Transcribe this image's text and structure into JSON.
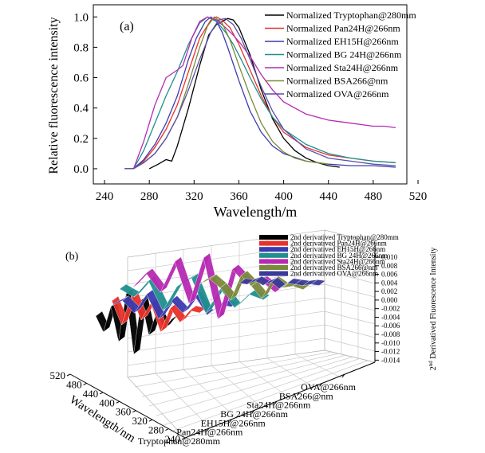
{
  "panel_a": {
    "label": "(a)",
    "chart_data": {
      "type": "line",
      "xlabel": "Wavelength/m",
      "ylabel": "Relative fluorescence intensity",
      "xlim": [
        230,
        510
      ],
      "ylim": [
        -0.1,
        1.08
      ],
      "xticks": [
        240,
        280,
        320,
        360,
        400,
        440,
        480,
        520
      ],
      "yticks": [
        0.0,
        0.2,
        0.4,
        0.6,
        0.8,
        1.0
      ],
      "ytick_labels": [
        "0.0",
        "0.2",
        "0.4",
        "0.6",
        "0.8",
        "1.0"
      ],
      "legend_position": "top-right",
      "series": [
        {
          "name": "Normalized Tryptophan@280mm",
          "color": "#000000",
          "x": [
            280,
            288,
            295,
            300,
            305,
            315,
            325,
            333,
            340,
            345,
            350,
            355,
            360,
            370,
            380,
            390,
            400,
            410,
            420,
            430,
            440,
            450
          ],
          "y": [
            0.0,
            0.03,
            0.06,
            0.05,
            0.15,
            0.4,
            0.68,
            0.88,
            0.95,
            0.97,
            0.99,
            0.98,
            0.93,
            0.75,
            0.52,
            0.33,
            0.2,
            0.12,
            0.07,
            0.04,
            0.02,
            0.01
          ]
        },
        {
          "name": "Normalized Pan24H@266nm",
          "color": "#e8312a",
          "x": [
            258,
            266,
            275,
            285,
            295,
            305,
            315,
            325,
            335,
            340,
            345,
            352,
            360,
            370,
            380,
            390,
            400,
            420,
            440,
            460,
            480,
            500
          ],
          "y": [
            0.0,
            0.0,
            0.05,
            0.14,
            0.26,
            0.42,
            0.64,
            0.86,
            0.98,
            1.0,
            0.98,
            0.93,
            0.82,
            0.65,
            0.48,
            0.34,
            0.24,
            0.14,
            0.09,
            0.07,
            0.05,
            0.04
          ]
        },
        {
          "name": "Normalized EH15H@266nm",
          "color": "#3b3bb0",
          "x": [
            258,
            266,
            275,
            285,
            295,
            305,
            315,
            322,
            330,
            335,
            340,
            345,
            350,
            360,
            370,
            380,
            390,
            400,
            420,
            440,
            460,
            480,
            500
          ],
          "y": [
            0.0,
            0.0,
            0.06,
            0.16,
            0.3,
            0.48,
            0.72,
            0.86,
            0.97,
            1.0,
            0.97,
            0.9,
            0.8,
            0.58,
            0.38,
            0.24,
            0.15,
            0.1,
            0.05,
            0.03,
            0.02,
            0.02,
            0.01
          ]
        },
        {
          "name": "Normalized BG 24H@266nm",
          "color": "#1f8f8f",
          "x": [
            258,
            266,
            275,
            285,
            295,
            305,
            315,
            325,
            332,
            340,
            348,
            355,
            362,
            370,
            380,
            390,
            400,
            420,
            440,
            460,
            480,
            500
          ],
          "y": [
            0.0,
            0.0,
            0.12,
            0.3,
            0.48,
            0.64,
            0.82,
            0.96,
            1.0,
            0.97,
            0.9,
            0.82,
            0.72,
            0.6,
            0.46,
            0.34,
            0.26,
            0.16,
            0.1,
            0.07,
            0.05,
            0.04
          ]
        },
        {
          "name": "Normalized Sta24H@266nm",
          "color": "#b62ab3",
          "x": [
            258,
            266,
            275,
            285,
            295,
            305,
            310,
            318,
            325,
            332,
            340,
            348,
            355,
            362,
            370,
            380,
            390,
            400,
            410,
            420,
            430,
            440,
            450,
            460,
            470,
            480,
            490,
            500
          ],
          "y": [
            0.0,
            0.0,
            0.18,
            0.42,
            0.6,
            0.65,
            0.68,
            0.86,
            0.97,
            1.0,
            0.98,
            0.93,
            0.88,
            0.82,
            0.74,
            0.62,
            0.52,
            0.44,
            0.4,
            0.36,
            0.34,
            0.32,
            0.31,
            0.3,
            0.29,
            0.28,
            0.28,
            0.27
          ]
        },
        {
          "name": "Normalized BSA266@nm",
          "color": "#7a8a3a",
          "x": [
            258,
            266,
            275,
            285,
            295,
            305,
            315,
            325,
            332,
            338,
            345,
            352,
            360,
            370,
            380,
            390,
            400,
            410,
            420,
            430,
            440
          ],
          "y": [
            0.0,
            0.0,
            0.04,
            0.1,
            0.2,
            0.34,
            0.56,
            0.8,
            0.94,
            1.0,
            0.96,
            0.85,
            0.68,
            0.48,
            0.3,
            0.18,
            0.11,
            0.07,
            0.05,
            0.04,
            0.03
          ]
        },
        {
          "name": "Normalized OVA@266nm",
          "color": "#5a4fa8",
          "x": [
            258,
            266,
            275,
            285,
            295,
            305,
            315,
            325,
            335,
            342,
            348,
            355,
            362,
            370,
            380,
            390,
            400,
            420,
            440,
            460,
            480,
            500
          ],
          "y": [
            0.0,
            0.0,
            0.04,
            0.1,
            0.2,
            0.34,
            0.52,
            0.72,
            0.9,
            0.98,
            0.99,
            0.95,
            0.86,
            0.72,
            0.54,
            0.38,
            0.26,
            0.13,
            0.07,
            0.05,
            0.03,
            0.02
          ]
        }
      ]
    }
  },
  "panel_b": {
    "label": "(b)",
    "chart_data": {
      "type": "3d-waterfall",
      "xlabel": "Wavelength/nm",
      "ylabel": "",
      "zlabel": "2nd Derivatived Fluorescence Intensity",
      "zlabel_superscript": "nd",
      "wavelength_ticks": [
        240,
        280,
        320,
        360,
        400,
        440,
        480,
        520
      ],
      "z_ticks": [
        "0.010",
        "0.008",
        "0.006",
        "0.004",
        "0.002",
        "0.000",
        "-0.002",
        "-0.004",
        "-0.006",
        "-0.008",
        "-0.010",
        "-0.012",
        "-0.014"
      ],
      "sample_ticks": [
        "Tryptophan@280mm",
        "Pan24H@266nm",
        "EH15H@266nm",
        "BG 24H@266nm",
        "Sta24H@266nm",
        "BSA266@nm",
        "OVA@266nm"
      ],
      "legend_position": "top",
      "series": [
        {
          "name": "2nd derivatived Tryptophan@280mm",
          "color": "#000000"
        },
        {
          "name": "2nd derivatived Pan24H@266nm",
          "color": "#e8312a"
        },
        {
          "name": "2nd derivatived EH15H@266nm",
          "color": "#3b3bb0"
        },
        {
          "name": "2nd derivatived BG 24H@266nm",
          "color": "#1f8f8f"
        },
        {
          "name": "2nd derivatived Sta24H@266nm",
          "color": "#b62ab3"
        },
        {
          "name": "2nd derivatived BSA266@nm",
          "color": "#7a8a3a"
        },
        {
          "name": "2nd derivatived OVA@266nm",
          "color": "#3a3a98"
        }
      ]
    }
  }
}
